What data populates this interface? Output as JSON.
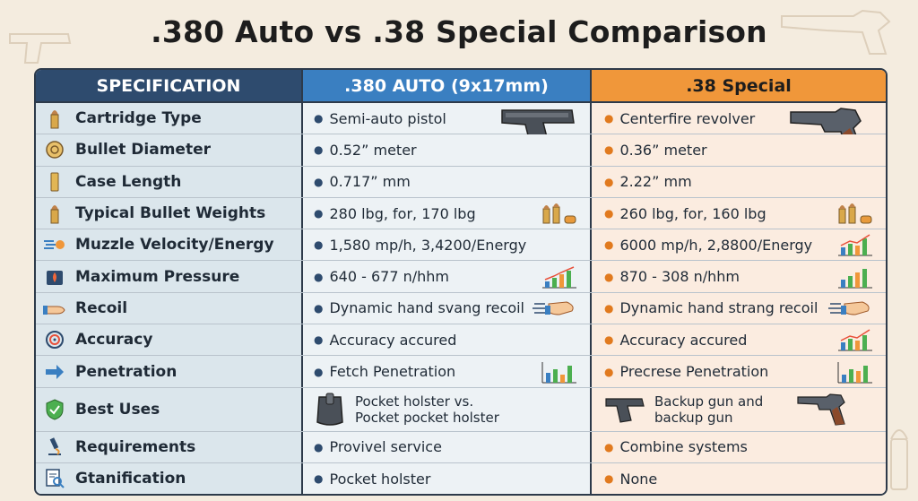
{
  "title": ".380 Auto vs .38 Special Comparison",
  "headers": {
    "spec": "SPECIFICATION",
    "a": ".380 AUTO (9x17mm)",
    "b": ".38 Special"
  },
  "rows": [
    {
      "spec": "Cartridge Type",
      "icon": "cartridge-icon",
      "a": "Semi-auto pistol",
      "b": "Centerfire revolver"
    },
    {
      "spec": "Bullet Diameter",
      "icon": "bullet-diameter-icon",
      "a": "0.52” meter",
      "b": "0.36” meter"
    },
    {
      "spec": "Case Length",
      "icon": "case-icon",
      "a": "0.717” mm",
      "b": "2.22” mm"
    },
    {
      "spec": "Typical Bullet Weights",
      "icon": "cartridge-icon",
      "a": "280 lbg, for, 170 lbg",
      "b": "260 lbg, for, 160 lbg"
    },
    {
      "spec": "Muzzle Velocity/Energy",
      "icon": "velocity-icon",
      "a": "1,580 mp/h, 3,4200/Energy",
      "b": "6000 mp/h, 2,8800/Energy"
    },
    {
      "spec": "Maximum Pressure",
      "icon": "pressure-icon",
      "a": "640 - 677 n/hhm",
      "b": "870 - 308 n/hhm"
    },
    {
      "spec": "Recoil",
      "icon": "hand-icon",
      "a": "Dynamic hand svang recoil",
      "b": "Dynamic hand strang recoil"
    },
    {
      "spec": "Accuracy",
      "icon": "target-icon",
      "a": "Accuracy accured",
      "b": "Accuracy accured"
    },
    {
      "spec": "Penetration",
      "icon": "arrow-right-icon",
      "a": "Fetch Penetration",
      "b": "Precrese Penetration"
    },
    {
      "spec": "Best Uses",
      "icon": "shield-check-icon",
      "a": "Pocket holster vs.\nPocket pocket holster",
      "b": "Backup gun and\nbackup gun"
    },
    {
      "spec": "Requirements",
      "icon": "microscope-icon",
      "a": "Provivel service",
      "b": "Combine systems"
    },
    {
      "spec": "Gtanification",
      "icon": "document-search-icon",
      "a": "Pocket holster",
      "b": "None"
    }
  ],
  "colors": {
    "header_spec": "#2e4b6e",
    "header_a": "#3a7fc1",
    "header_b": "#f0973a"
  }
}
